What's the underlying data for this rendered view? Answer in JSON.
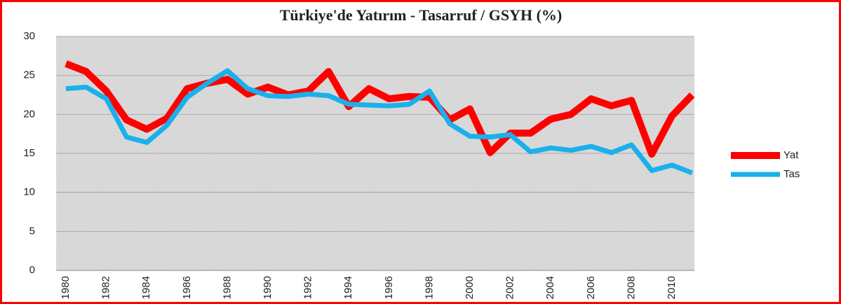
{
  "chart_data": {
    "type": "line",
    "title": "Türkiye'de Yatırım - Tasarruf / GSYH (%)",
    "categories": [
      "1980",
      null,
      "1982",
      null,
      "1984",
      null,
      "1986",
      null,
      "1988",
      null,
      "1990",
      null,
      "1992",
      null,
      "1994",
      null,
      "1996",
      null,
      "1998",
      null,
      "2000",
      null,
      "2002",
      null,
      "2004",
      null,
      "2006",
      null,
      "2008",
      null,
      "2010",
      null
    ],
    "series": [
      {
        "name": "Yat",
        "color": "#ff0000",
        "values": [
          26.5,
          25.5,
          23,
          19.3,
          18.1,
          19.5,
          23.3,
          24,
          24.5,
          22.6,
          23.5,
          22.5,
          23,
          25.5,
          21,
          23.3,
          22,
          22.3,
          22.2,
          19.3,
          20.7,
          15.1,
          17.6,
          17.6,
          19.4,
          20,
          22,
          21.1,
          21.8,
          14.9,
          19.8,
          22.5
        ]
      },
      {
        "name": "Tas",
        "color": "#1ab0ec",
        "values": [
          23.3,
          23.5,
          22,
          17.1,
          16.4,
          18.6,
          22.2,
          24,
          25.6,
          23.3,
          22.4,
          22.3,
          22.6,
          22.4,
          21.3,
          21.2,
          21.1,
          21.3,
          23,
          18.8,
          17.2,
          17.1,
          17.4,
          15.2,
          15.7,
          15.4,
          15.9,
          15.1,
          16.1,
          12.8,
          13.5,
          12.5
        ]
      }
    ],
    "ylim": [
      0,
      30
    ],
    "yticks": [
      0,
      5,
      10,
      15,
      20,
      25,
      30
    ],
    "grid": true,
    "legend": "right"
  }
}
